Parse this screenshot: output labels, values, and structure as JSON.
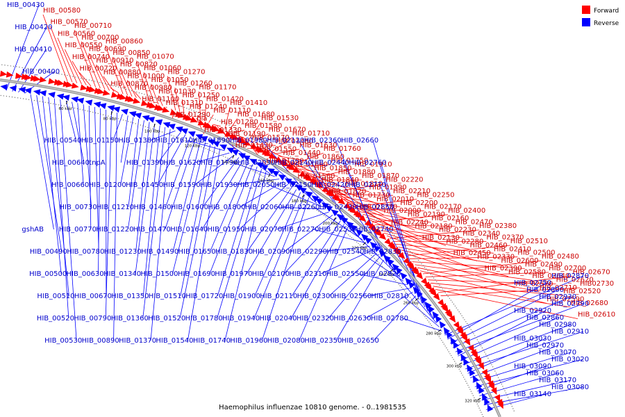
{
  "footer": "Haemophilus influenzae 10810 genome. - 0..1981535",
  "legend": {
    "forward_label": "Forward",
    "reverse_label": "Reverse",
    "forward_color": "#ff0000",
    "reverse_color": "#0000ff"
  },
  "ticks": [
    "60 kbp",
    "80 kbp",
    "100 kbp",
    "120 kbp",
    "140 kbp",
    "160 kbp",
    "180 kbp",
    "200 kbp",
    "220 kbp",
    "240 kbp",
    "260 kbp",
    "280 kbp",
    "300 kbp",
    "320 kbp"
  ],
  "forward_labels": [
    "HIB_00580",
    "HIB_00570",
    "HIB_00560",
    "HIB_00550",
    "HIB_00740",
    "HIB_00720",
    "HIB_00710",
    "HIB_00700",
    "HIB_00690",
    "HIB_00910",
    "HIB_00880",
    "HIB_00870",
    "HIB_00860",
    "HIB_00850",
    "HIB_00820",
    "HIB_01000",
    "HIB_00980",
    "HIB_01100",
    "HIB_01070",
    "HIB_01060",
    "HIB_01050",
    "HIB_01030",
    "HIB_01310",
    "HIB_01290",
    "HIB_01270",
    "HIB_01260",
    "HIB_01250",
    "HIB_01240",
    "bla",
    "HIB_01330",
    "HIB_01170",
    "HIB_01420",
    "HIB_01110",
    "HIB_01280",
    "HIB_01190",
    "HIB_01430",
    "HIB_01410",
    "HIB_01680",
    "HIB_01580",
    "HIB_01570",
    "HIB_01550",
    "HIB_01700",
    "HIB_01530",
    "HIB_01670",
    "HIB_01480",
    "HIB_01440",
    "HIB_01660",
    "HIB_01560",
    "HIB_01710",
    "HIB_01630",
    "HIB_01860",
    "HIB_01850",
    "HIB_01840",
    "HIB_01820",
    "HIB_01760",
    "HIB_01750",
    "HIB_01880",
    "HIB_01810",
    "HIB_01730",
    "HIB_01770",
    "HIB_01910",
    "HIB_01870",
    "HIB_01990",
    "HIB_02010",
    "HIB_02000",
    "HIB_02240",
    "HIB_02220",
    "HIB_02210",
    "HIB_02200",
    "HIB_02190",
    "HIB_02180",
    "HIB_02130",
    "HIB_02250",
    "HIB_02170",
    "HIB_02160",
    "HIB_02230",
    "HIB_02280",
    "HIB_02450",
    "HIB_02400",
    "HIB_02470",
    "HIB_02340",
    "HIB_02460",
    "HIB_02330",
    "HIB_02390",
    "HIB_02380",
    "HIB_02370",
    "HIB_02410",
    "HIB_02600",
    "HIB_02580",
    "HIB_02570",
    "HIB_02510",
    "HIB_02500",
    "HIB_02490",
    "HIB_02640",
    "HIB_02710",
    "HIB_02590",
    "HIB_02480",
    "HIB_02700",
    "HIB_02620",
    "HIB_02520",
    "HIB_02680",
    "HIB_02610",
    "HIB_02670",
    "HIB02730"
  ],
  "reverse_labels": [
    "HIB_00430",
    "HIB_00420",
    "HIB_00410",
    "HIB_00400",
    "gshAB",
    "HIB_00490",
    "HIB_00500",
    "HIB_00510",
    "HIB_00520",
    "HIB_00530",
    "HIB_00540",
    "HIB_00640",
    "HIB_00660",
    "HIB_00730",
    "HIB_00770",
    "HIB_00780",
    "HIB_00630",
    "HIB_00670",
    "HIB_00790",
    "HIB_00890",
    "HIB_01150",
    "tnpA",
    "HIB_01200",
    "HIB_01210",
    "HIB_01220",
    "HIB_01230",
    "HIB_01340",
    "HIB_01350",
    "HIB_01360",
    "HIB_01370",
    "HIB_01380",
    "HIB_01390",
    "HIB_01450",
    "HIB_01460",
    "HIB_01470",
    "HIB_01490",
    "HIB_01500",
    "HIB_01510",
    "HIB_01520",
    "HIB_01540",
    "HIB_01610",
    "HIB_01620",
    "HIB_01590",
    "HIB_01600",
    "HIB_01640",
    "HIB_01650",
    "HIB_01690",
    "HIB_01720",
    "HIB_01780",
    "HIB_01740",
    "HIB_01890",
    "HIB_01790",
    "HIB_01930",
    "HIB_01800",
    "HIB_01950",
    "HIB_01830",
    "HIB_01970",
    "HIB_01900",
    "HIB_01940",
    "HIB_01960",
    "HIB_01980",
    "HIB_02030",
    "HIB_02050",
    "HIB_02060",
    "HIB_02070",
    "HIB_02090",
    "HIB_02100",
    "HIB_02110",
    "HIB_02040",
    "HIB_02080",
    "HIB_02120",
    "HIB_02140",
    "HIB_02150",
    "HIB_02260",
    "HIB_02270",
    "HIB_02290",
    "HIB_02310",
    "HIB_02300",
    "HIB_02320",
    "HIB_02350",
    "HIB_02360",
    "HIB_02440",
    "HIB_02420",
    "HIB_02430",
    "HIB_02530",
    "HIB_02540",
    "HIB_02550",
    "HIB_02560",
    "HIB_02630",
    "HIB_02650",
    "HIB_02660",
    "HIB_02760",
    "HIB_02770",
    "HIB_02850",
    "HIB_02740",
    "HIB_02830",
    "HIB_02820",
    "HIB_02810",
    "HIB_02780",
    "HIB_02870",
    "HIB_02750",
    "HIB_02800",
    "HIB_02930",
    "HIB_02790",
    "HIB_02920",
    "HIB_02860",
    "HIB_02980",
    "HIB_02910",
    "HIB_03030",
    "HIB_02970",
    "HIB_03070",
    "HIB_03020",
    "HIB_03090",
    "HIB_03060",
    "HIB_03170",
    "HIB_03080",
    "HIB_03140"
  ]
}
